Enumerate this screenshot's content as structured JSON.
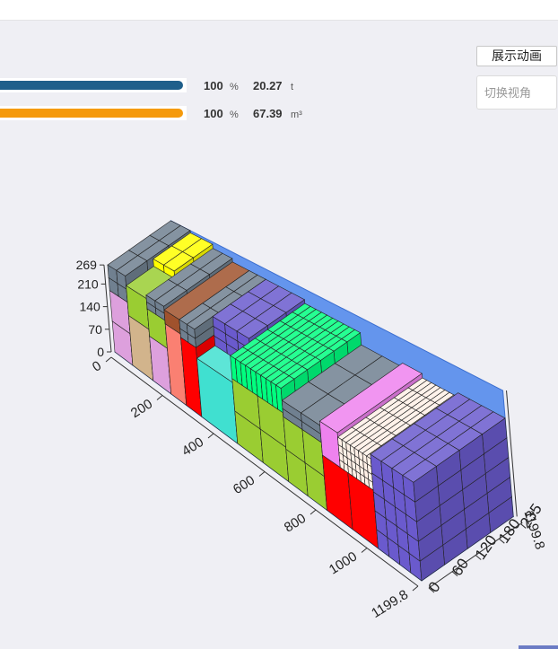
{
  "stats": [
    {
      "percent": 100,
      "percent_unit": "%",
      "amount": "20.27",
      "amount_unit": "t",
      "color": "#1f5f8b"
    },
    {
      "percent": 100,
      "percent_unit": "%",
      "amount": "67.39",
      "amount_unit": "m³",
      "color": "#f59a0c"
    }
  ],
  "buttons": {
    "animate": "展示动画",
    "view_placeholder": "切换视角"
  },
  "axes": {
    "height_ticks": [
      269,
      210,
      140,
      70,
      0
    ],
    "length_ticks": [
      0,
      200,
      400,
      600,
      800,
      1000,
      1199.8
    ],
    "width_ticks": [
      0,
      60,
      120,
      180,
      235
    ],
    "depth_end": 1199.8
  }
}
